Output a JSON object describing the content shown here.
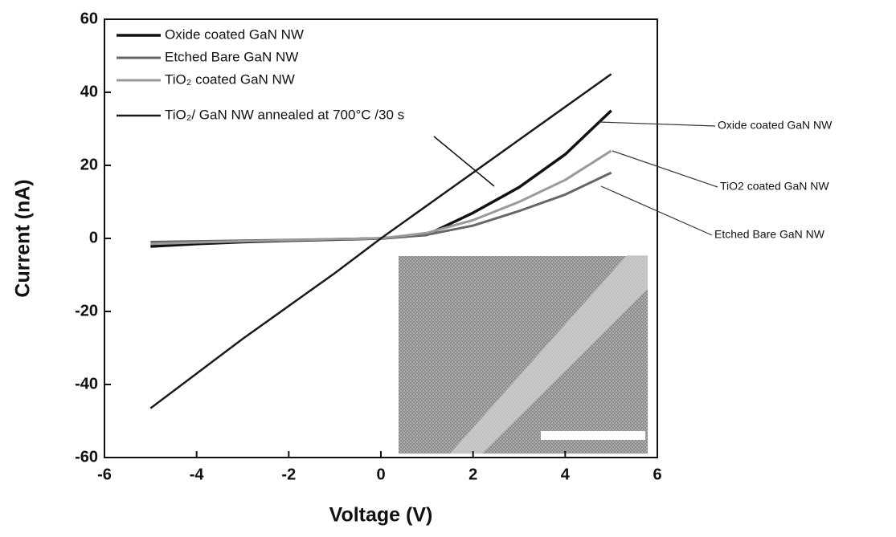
{
  "chart_data": {
    "type": "line",
    "x_label": "Voltage (V)",
    "y_label": "Current (nA)",
    "x": [
      -5,
      -4,
      -3,
      -2,
      -1,
      0,
      1,
      2,
      3,
      4,
      5
    ],
    "series": [
      {
        "name": "Oxide coated GaN NW",
        "color": "#111111",
        "width": 3.5,
        "values": [
          -2.2,
          -1.5,
          -1,
          -0.6,
          -0.3,
          0,
          1,
          7,
          14,
          23,
          35
        ]
      },
      {
        "name": "Etched Bare GaN NW",
        "color": "#666666",
        "width": 3,
        "values": [
          -1,
          -0.8,
          -0.6,
          -0.4,
          -0.2,
          0,
          1,
          3.5,
          7.5,
          12,
          18
        ]
      },
      {
        "name": "TiO₂ coated GaN NW",
        "color": "#9a9a9a",
        "width": 3,
        "values": [
          -1.5,
          -1.1,
          -0.8,
          -0.5,
          -0.2,
          0,
          1.5,
          5,
          10,
          16,
          24
        ]
      },
      {
        "name": "TiO₂/ GaN NW annealed at 700°C /30 s",
        "color": "#1a1a1a",
        "width": 2.5,
        "values": [
          -46.5,
          -37,
          -27.5,
          -18.5,
          -9.5,
          0,
          9,
          18,
          27,
          36,
          45
        ]
      }
    ],
    "annotations": [
      "Oxide coated GaN NW",
      "TiO2 coated GaN NW",
      "Etched Bare GaN NW"
    ],
    "xlim": [
      -6,
      6
    ],
    "xticks": [
      -6,
      -4,
      -2,
      0,
      2,
      4,
      6
    ],
    "ylim": [
      -60,
      60
    ],
    "yticks": [
      -60,
      -40,
      -20,
      0,
      20,
      40,
      60
    ]
  }
}
